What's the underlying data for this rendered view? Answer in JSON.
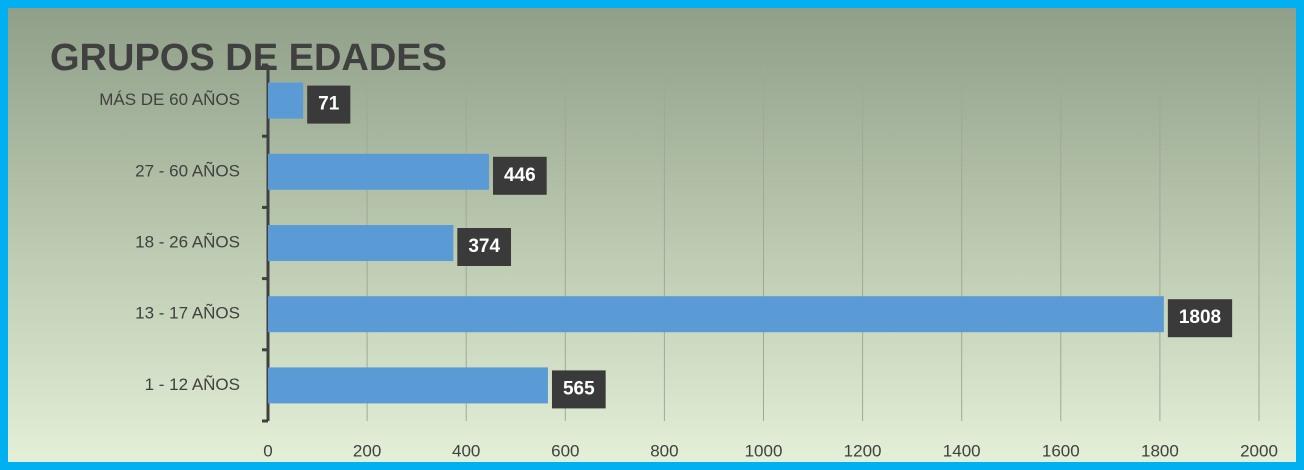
{
  "chart_data": {
    "type": "bar",
    "orientation": "horizontal",
    "title": "GRUPOS DE EDADES",
    "categories": [
      "MÁS DE 60 AÑOS",
      "27 - 60 AÑOS",
      "18 - 26 AÑOS",
      "13 - 17 AÑOS",
      "1 - 12 AÑOS"
    ],
    "values": [
      71,
      446,
      374,
      1808,
      565
    ],
    "color": "#5b9bd5",
    "xlim": [
      0,
      2000
    ],
    "xticks": [
      0,
      200,
      400,
      600,
      800,
      1000,
      1200,
      1400,
      1600,
      1800,
      2000
    ],
    "grid": true
  }
}
